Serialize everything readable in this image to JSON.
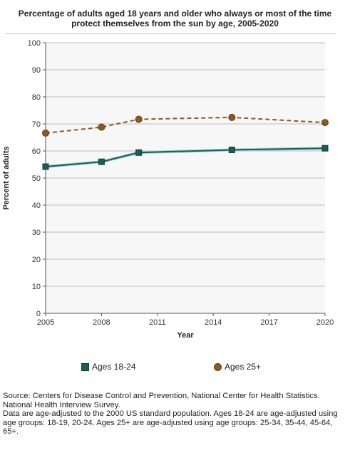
{
  "chart_data": {
    "type": "line",
    "title": "Percentage of adults aged 18 years and older who always or most of the time protect themselves from the sun by age, 2005-2020",
    "xlabel": "Year",
    "ylabel": "Percent of adults",
    "xlim": [
      2005,
      2020
    ],
    "ylim": [
      0,
      100
    ],
    "x_ticks": [
      "2005",
      "2008",
      "2011",
      "2014",
      "2017",
      "2020"
    ],
    "y_ticks": [
      "0",
      "10",
      "20",
      "30",
      "40",
      "50",
      "60",
      "70",
      "80",
      "90",
      "100"
    ],
    "grid": true,
    "legend_position": "bottom",
    "series": [
      {
        "name": "Ages 18-24",
        "color": "#1a5e58",
        "marker": "square",
        "line": "solid",
        "x": [
          2005,
          2008,
          2010,
          2015,
          2020
        ],
        "values": [
          54.2,
          56.0,
          59.4,
          60.4,
          61.0
        ]
      },
      {
        "name": "Ages 25+",
        "color": "#8a5a1e",
        "marker": "circle",
        "line": "dashed",
        "x": [
          2005,
          2008,
          2010,
          2015,
          2020
        ],
        "values": [
          66.6,
          68.8,
          71.7,
          72.4,
          70.5
        ]
      }
    ]
  },
  "footnotes": {
    "source": "Source: Centers for Disease Control and Prevention, National Center for Health Statistics. National Health Interview Survey.",
    "note": "Data are age-adjusted to the 2000 US standard population. Ages 18-24 are age-adjusted using age groups: 18-19, 20-24. Ages 25+ are age-adjusted using age groups: 25-34, 35-44, 45-64, 65+."
  }
}
